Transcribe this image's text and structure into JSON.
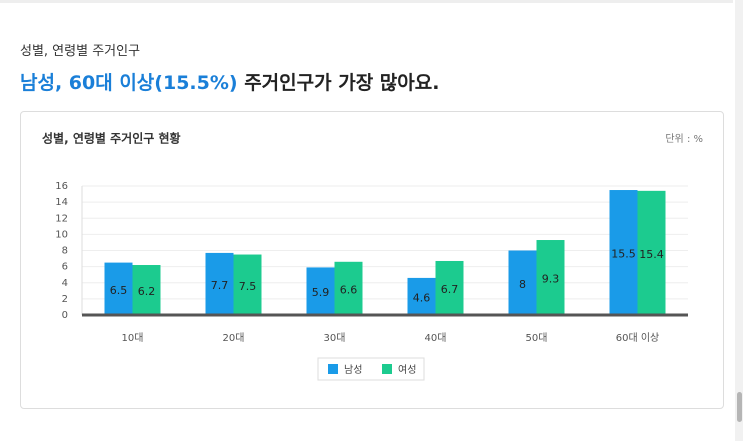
{
  "header": {
    "subtitle": "성별, 연령별 주거인구",
    "headline_highlight": "남성, 60대 이상(15.5%)",
    "headline_rest": " 주거인구가 가장 많아요."
  },
  "chart_data": {
    "type": "bar",
    "title": "성별, 연령별 주거인구 현황",
    "unit": "단위 : %",
    "categories": [
      "10대",
      "20대",
      "30대",
      "40대",
      "50대",
      "60대 이상"
    ],
    "series": [
      {
        "name": "남성",
        "color": "#1a9be8",
        "values": [
          6.5,
          7.7,
          5.9,
          4.6,
          8,
          15.5
        ]
      },
      {
        "name": "여성",
        "color": "#1ccb8f",
        "values": [
          6.2,
          7.5,
          6.6,
          6.7,
          9.3,
          15.4
        ]
      }
    ],
    "ylim": [
      0,
      16
    ],
    "yticks": [
      0,
      2,
      4,
      6,
      8,
      10,
      12,
      14,
      16
    ],
    "grid": true
  }
}
